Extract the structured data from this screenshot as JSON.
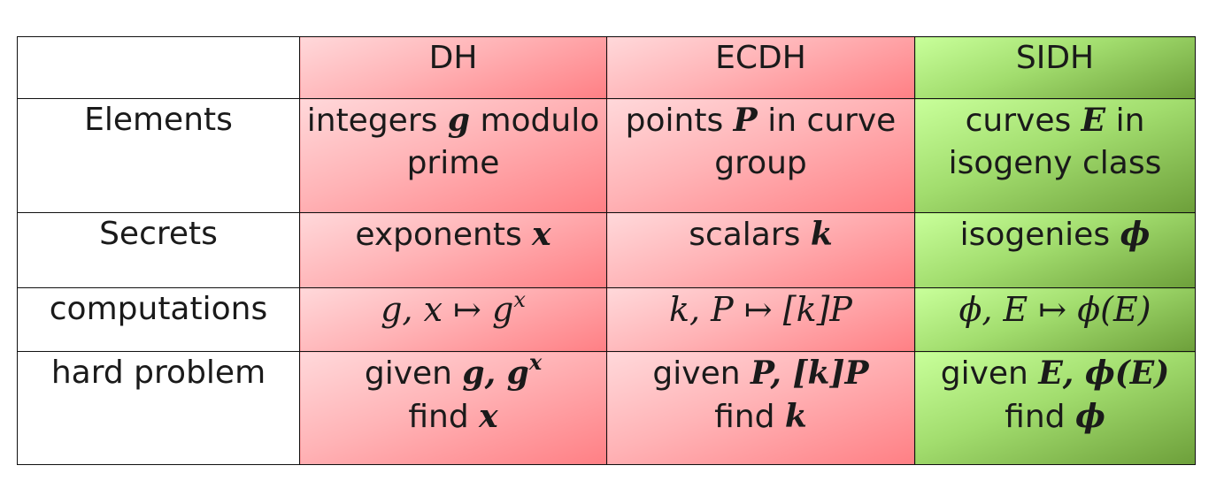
{
  "headers": {
    "corner": "",
    "dh": "DH",
    "ecdh": "ECDH",
    "sidh": "SIDH"
  },
  "rows": {
    "elements": {
      "label": "Elements",
      "dh": {
        "pre": "integers ",
        "var": "g",
        "post": " modulo",
        "line2": "prime"
      },
      "ecdh": {
        "pre": "points ",
        "var": "P",
        "post": " in curve",
        "line2": "group"
      },
      "sidh": {
        "pre": "curves ",
        "var": "E",
        "post": " in",
        "line2": "isogeny class"
      }
    },
    "secrets": {
      "label": "Secrets",
      "dh": {
        "pre": "exponents ",
        "var": "x"
      },
      "ecdh": {
        "pre": "scalars ",
        "var": "k"
      },
      "sidh": {
        "pre": "isogenies ",
        "var": "ϕ"
      }
    },
    "computations": {
      "label": "computations",
      "dh": {
        "lhs": "g, x ↦ g",
        "sup": "x"
      },
      "ecdh": {
        "expr": "k, P ↦ [k]P"
      },
      "sidh": {
        "expr": "ϕ, E ↦ ϕ(E)"
      }
    },
    "hard_problem": {
      "label": "hard problem",
      "dh": {
        "pre": "given ",
        "expr": "g, g",
        "sup": "x",
        "find": "find ",
        "var": "x"
      },
      "ecdh": {
        "pre": "given ",
        "expr": "P, [k]P",
        "find": "find ",
        "var": "k"
      },
      "sidh": {
        "pre": "given ",
        "expr": "E, ϕ(E)",
        "find": "find ",
        "var": "ϕ"
      }
    }
  },
  "colors": {
    "dh_ecdh_fill": "#ffb3b6",
    "sidh_fill": "#a2dd6e",
    "border": "#111111"
  }
}
